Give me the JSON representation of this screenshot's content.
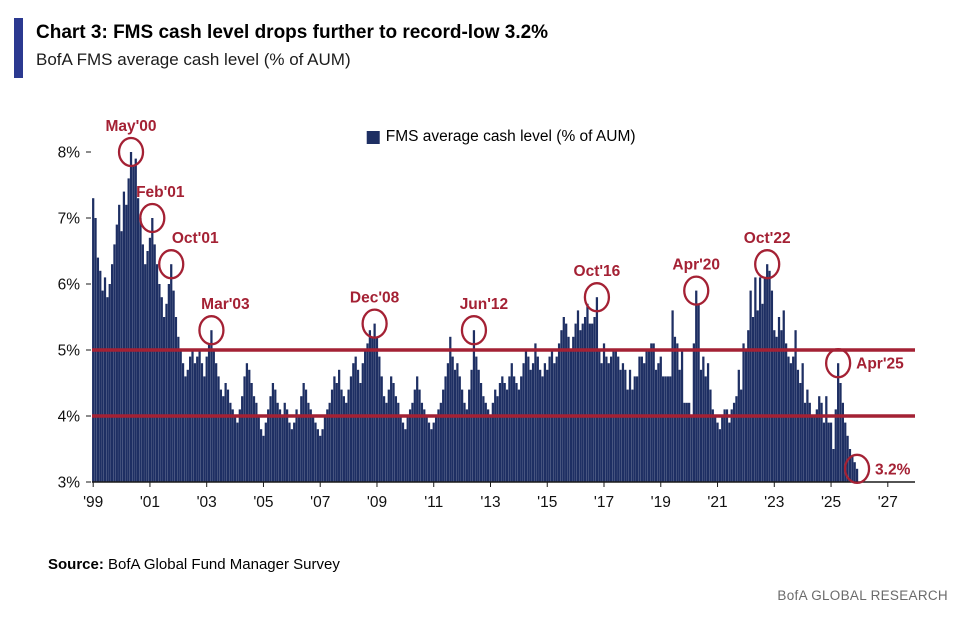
{
  "header": {
    "title": "Chart 3: FMS cash level drops further to record-low 3.2%",
    "subtitle": "BofA FMS average cash level (% of AUM)"
  },
  "legend": {
    "label": "FMS average cash level (% of AUM)"
  },
  "footer": {
    "source_label": "Source:",
    "source_text": " BofA Global Fund Manager Survey",
    "brand": "BofA GLOBAL RESEARCH"
  },
  "colors": {
    "bar": "#1e2f63",
    "accent_red": "#a42134",
    "title_accent": "#2b3990",
    "axis": "#1a1a1a"
  },
  "chart_data": {
    "type": "bar",
    "title": "BofA FMS average cash level (% of AUM)",
    "ylabel": "",
    "xlabel": "",
    "ylim": [
      3,
      8
    ],
    "yticks": [
      "3%",
      "4%",
      "5%",
      "6%",
      "7%",
      "8%"
    ],
    "ytick_values": [
      3,
      4,
      5,
      6,
      7,
      8
    ],
    "xticks": [
      "'99",
      "'01",
      "'03",
      "'05",
      "'07",
      "'09",
      "'11",
      "'13",
      "'15",
      "'17",
      "'19",
      "'21",
      "'23",
      "'25",
      "'27"
    ],
    "xtick_years": [
      1999,
      2001,
      2003,
      2005,
      2007,
      2009,
      2011,
      2013,
      2015,
      2017,
      2019,
      2021,
      2023,
      2025,
      2027
    ],
    "start_year": 1999,
    "axis_end_year": 2027,
    "hlines": [
      4,
      5
    ],
    "grid": false,
    "legend_position": "top-center",
    "values": [
      7.3,
      7.0,
      6.4,
      6.2,
      5.9,
      6.1,
      5.8,
      6.0,
      6.3,
      6.6,
      6.9,
      7.2,
      6.8,
      7.4,
      7.2,
      7.6,
      8.0,
      7.8,
      7.9,
      7.3,
      7.0,
      6.6,
      6.3,
      6.5,
      6.7,
      7.0,
      6.6,
      6.3,
      6.0,
      5.8,
      5.5,
      5.7,
      6.0,
      6.3,
      5.9,
      5.5,
      5.2,
      5.0,
      4.8,
      4.6,
      4.7,
      4.9,
      5.0,
      4.8,
      4.9,
      5.0,
      4.8,
      4.6,
      4.9,
      5.1,
      5.3,
      5.0,
      4.8,
      4.6,
      4.4,
      4.3,
      4.5,
      4.4,
      4.2,
      4.1,
      4.0,
      3.9,
      4.1,
      4.3,
      4.6,
      4.8,
      4.7,
      4.5,
      4.3,
      4.2,
      4.0,
      3.8,
      3.7,
      3.9,
      4.1,
      4.3,
      4.5,
      4.4,
      4.2,
      4.1,
      4.0,
      4.2,
      4.1,
      3.9,
      3.8,
      3.9,
      4.1,
      4.0,
      4.3,
      4.5,
      4.4,
      4.2,
      4.1,
      4.0,
      3.9,
      3.8,
      3.7,
      3.8,
      4.0,
      4.1,
      4.2,
      4.4,
      4.6,
      4.5,
      4.7,
      4.4,
      4.3,
      4.2,
      4.4,
      4.6,
      4.8,
      4.9,
      4.7,
      4.5,
      4.8,
      5.0,
      5.1,
      5.3,
      5.2,
      5.4,
      5.2,
      4.9,
      4.6,
      4.3,
      4.2,
      4.4,
      4.6,
      4.5,
      4.3,
      4.2,
      4.0,
      3.9,
      3.8,
      4.0,
      4.1,
      4.2,
      4.4,
      4.6,
      4.4,
      4.2,
      4.1,
      4.0,
      3.9,
      3.8,
      3.9,
      4.0,
      4.1,
      4.2,
      4.4,
      4.6,
      4.8,
      5.2,
      4.9,
      4.7,
      4.8,
      4.6,
      4.4,
      4.2,
      4.1,
      4.4,
      4.7,
      5.3,
      4.9,
      4.7,
      4.5,
      4.3,
      4.2,
      4.1,
      4.0,
      4.2,
      4.4,
      4.3,
      4.5,
      4.6,
      4.5,
      4.4,
      4.6,
      4.8,
      4.6,
      4.5,
      4.4,
      4.6,
      4.8,
      5.0,
      4.9,
      4.7,
      4.8,
      5.1,
      4.9,
      4.7,
      4.6,
      4.8,
      4.7,
      4.9,
      5.0,
      4.8,
      4.9,
      5.1,
      5.3,
      5.5,
      5.4,
      5.2,
      5.0,
      5.2,
      5.4,
      5.6,
      5.3,
      5.4,
      5.5,
      5.7,
      5.4,
      5.4,
      5.5,
      5.8,
      5.0,
      4.8,
      5.1,
      4.9,
      4.8,
      4.9,
      5.0,
      5.0,
      4.9,
      4.7,
      4.8,
      4.7,
      4.4,
      4.7,
      4.4,
      4.6,
      4.6,
      4.9,
      4.9,
      4.8,
      5.0,
      5.0,
      5.1,
      5.1,
      4.7,
      4.8,
      4.9,
      4.6,
      4.6,
      4.6,
      4.6,
      5.6,
      5.2,
      5.1,
      4.7,
      5.0,
      4.2,
      4.2,
      4.2,
      4.0,
      5.1,
      5.9,
      5.7,
      4.7,
      4.9,
      4.6,
      4.8,
      4.4,
      4.1,
      4.0,
      3.9,
      3.8,
      4.0,
      4.1,
      4.1,
      3.9,
      4.1,
      4.2,
      4.3,
      4.7,
      4.4,
      5.1,
      5.0,
      5.3,
      5.9,
      5.5,
      6.1,
      5.6,
      6.1,
      5.7,
      6.1,
      6.3,
      6.2,
      5.9,
      5.3,
      5.2,
      5.5,
      5.3,
      5.6,
      5.1,
      4.9,
      4.8,
      4.9,
      5.3,
      4.7,
      4.5,
      4.8,
      4.2,
      4.4,
      4.2,
      4.0,
      4.0,
      4.1,
      4.3,
      4.2,
      3.9,
      4.3,
      3.9,
      3.9,
      3.5,
      4.1,
      4.8,
      4.5,
      4.2,
      3.9,
      3.7,
      3.5,
      3.4,
      3.3,
      3.2
    ],
    "annotations": [
      {
        "label": "May'00",
        "date": "2000-05",
        "value": 8.0,
        "placement": "above",
        "dx": 0
      },
      {
        "label": "Feb'01",
        "date": "2001-02",
        "value": 7.0,
        "placement": "above",
        "dx": 8
      },
      {
        "label": "Oct'01",
        "date": "2001-10",
        "value": 6.3,
        "placement": "above",
        "dx": 24
      },
      {
        "label": "Mar'03",
        "date": "2003-03",
        "value": 5.3,
        "placement": "above",
        "dx": 14
      },
      {
        "label": "Dec'08",
        "date": "2008-12",
        "value": 5.4,
        "placement": "above",
        "dx": 0
      },
      {
        "label": "Jun'12",
        "date": "2012-06",
        "value": 5.3,
        "placement": "above",
        "dx": 10
      },
      {
        "label": "Oct'16",
        "date": "2016-10",
        "value": 5.8,
        "placement": "above",
        "dx": 0
      },
      {
        "label": "Apr'20",
        "date": "2020-04",
        "value": 5.9,
        "placement": "above",
        "dx": 0
      },
      {
        "label": "Oct'22",
        "date": "2022-10",
        "value": 6.3,
        "placement": "above",
        "dx": 0
      },
      {
        "label": "Apr'25",
        "date": "2025-04",
        "value": 4.8,
        "placement": "right"
      },
      {
        "label": "3.2%",
        "date": "2025-12",
        "value": 3.2,
        "placement": "right"
      }
    ]
  }
}
